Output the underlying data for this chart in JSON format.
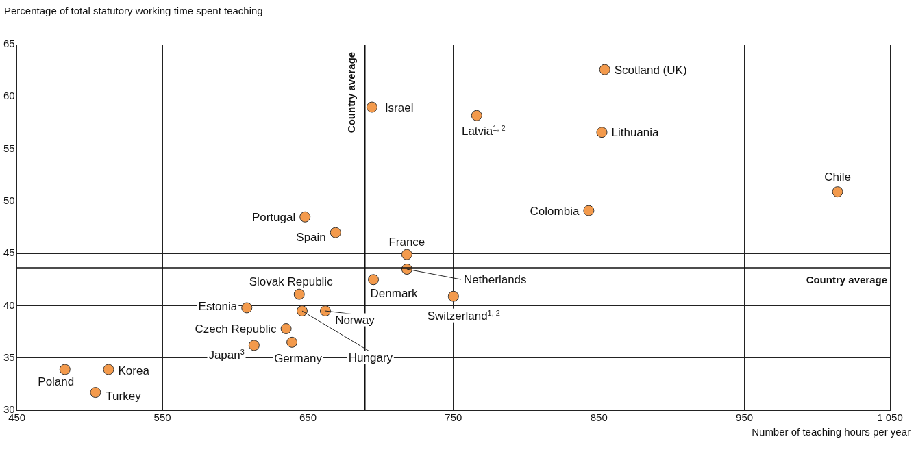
{
  "chart_data": {
    "type": "scatter",
    "xlabel": "Number of teaching hours per year",
    "ylabel": "Percentage of total statutory working time spent teaching",
    "x": [
      854,
      694,
      766,
      852,
      1014,
      843,
      648,
      669,
      718,
      718,
      695,
      644,
      750,
      608,
      646,
      662,
      635,
      613,
      639,
      483,
      513,
      504
    ],
    "values": [
      62.6,
      59.0,
      58.2,
      56.6,
      50.9,
      49.1,
      48.5,
      47.0,
      44.9,
      43.5,
      42.5,
      41.1,
      40.9,
      39.8,
      39.5,
      39.5,
      37.8,
      36.2,
      36.5,
      33.9,
      33.9,
      31.7
    ],
    "color": "#f39a4c",
    "marker": "circle",
    "xlim": [
      450,
      1050
    ],
    "xticks": [
      450,
      550,
      650,
      750,
      850,
      950,
      {
        "value": 1050,
        "label": "1 050"
      }
    ],
    "ylim": [
      30,
      65
    ],
    "yticks": [
      30,
      35,
      40,
      45,
      50,
      55,
      60,
      65
    ],
    "grid": true,
    "ref_lines": [
      {
        "axis": "x",
        "value": 689,
        "label": "Country average"
      },
      {
        "axis": "y",
        "value": 43.6,
        "label": "Country average"
      }
    ],
    "annotations": [
      {
        "text": "Scotland (UK)",
        "x": 854,
        "y": 62.6
      },
      {
        "text": "Israel",
        "x": 694,
        "y": 59.0
      },
      {
        "text": "Latvia$^{1, 2}$",
        "x": 766,
        "y": 58.2
      },
      {
        "text": "Lithuania",
        "x": 852,
        "y": 56.6
      },
      {
        "text": "Chile",
        "x": 1014,
        "y": 50.9
      },
      {
        "text": "Colombia",
        "x": 843,
        "y": 49.1
      },
      {
        "text": "Portugal",
        "x": 648,
        "y": 48.5
      },
      {
        "text": "Spain",
        "x": 669,
        "y": 47.0
      },
      {
        "text": "France",
        "x": 718,
        "y": 44.9
      },
      {
        "text": "Netherlands",
        "x": 718,
        "y": 43.5
      },
      {
        "text": "Denmark",
        "x": 695,
        "y": 42.5
      },
      {
        "text": "Slovak Republic",
        "x": 644,
        "y": 41.1
      },
      {
        "text": "Switzerland$^{1, 2}$",
        "x": 750,
        "y": 40.9
      },
      {
        "text": "Estonia",
        "x": 608,
        "y": 39.8
      },
      {
        "text": "Hungary",
        "x": 646,
        "y": 39.5
      },
      {
        "text": "Norway",
        "x": 662,
        "y": 39.5
      },
      {
        "text": "Czech Republic",
        "x": 635,
        "y": 37.8
      },
      {
        "text": "Japan$^{3}$",
        "x": 613,
        "y": 36.2
      },
      {
        "text": "Germany",
        "x": 639,
        "y": 36.5
      },
      {
        "text": "Poland",
        "x": 483,
        "y": 33.9
      },
      {
        "text": "Korea",
        "x": 513,
        "y": 33.9
      },
      {
        "text": "Turkey",
        "x": 504,
        "y": 31.7
      }
    ]
  }
}
